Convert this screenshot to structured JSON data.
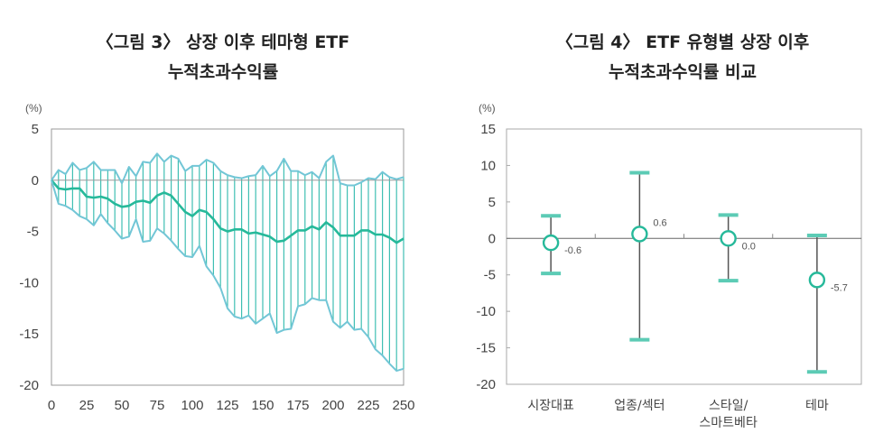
{
  "chart_data": [
    {
      "type": "line",
      "title": [
        "〈그림 3〉 상장 이후 테마형 ETF",
        "누적초과수익률"
      ],
      "unit_label": "(%)",
      "xlabel": "",
      "ylabel": "",
      "xlim": [
        0,
        250
      ],
      "ylim": [
        -20,
        5
      ],
      "xticks": [
        0,
        25,
        50,
        75,
        100,
        125,
        150,
        175,
        200,
        225,
        250
      ],
      "yticks": [
        5,
        0,
        -5,
        -10,
        -15,
        -20
      ],
      "grid": false,
      "range_fill": "vertical hatch between upper and lower series",
      "x": [
        0,
        5,
        10,
        15,
        20,
        25,
        30,
        35,
        40,
        45,
        50,
        55,
        60,
        65,
        70,
        75,
        80,
        85,
        90,
        95,
        100,
        105,
        110,
        115,
        120,
        125,
        130,
        135,
        140,
        145,
        150,
        155,
        160,
        165,
        170,
        175,
        180,
        185,
        190,
        195,
        200,
        205,
        210,
        215,
        220,
        225,
        230,
        235,
        240,
        245,
        250
      ],
      "series": [
        {
          "role": "upper",
          "color": "#72c6d6",
          "values": [
            0,
            1.0,
            0.6,
            1.7,
            1.0,
            1.2,
            1.8,
            1.0,
            1.0,
            1.0,
            -0.3,
            1.3,
            0.4,
            1.8,
            1.7,
            2.6,
            1.8,
            2.4,
            2.1,
            0.9,
            1.4,
            1.4,
            2.0,
            1.7,
            0.9,
            0.5,
            0.3,
            0.2,
            0.4,
            0.5,
            1.4,
            0.4,
            0.9,
            2.1,
            0.9,
            0.9,
            0.5,
            0.8,
            0.2,
            1.8,
            2.4,
            -0.3,
            -0.5,
            -0.5,
            -0.2,
            0.2,
            0.1,
            0.8,
            0.3,
            0.1,
            0.3
          ]
        },
        {
          "role": "mean",
          "color": "#26b99a",
          "values": [
            0,
            -0.8,
            -0.9,
            -0.8,
            -0.8,
            -1.6,
            -1.7,
            -1.6,
            -1.8,
            -2.3,
            -2.6,
            -2.5,
            -2.1,
            -2.0,
            -2.2,
            -1.5,
            -1.2,
            -1.5,
            -2.3,
            -3.1,
            -3.5,
            -2.9,
            -3.1,
            -3.8,
            -4.7,
            -5.0,
            -4.8,
            -4.8,
            -5.2,
            -5.1,
            -5.3,
            -5.5,
            -6.0,
            -5.9,
            -5.4,
            -4.9,
            -4.9,
            -4.5,
            -4.8,
            -4.1,
            -4.6,
            -5.4,
            -5.4,
            -5.4,
            -4.9,
            -4.9,
            -5.3,
            -5.3,
            -5.6,
            -6.1,
            -5.7
          ]
        },
        {
          "role": "lower",
          "color": "#72c6d6",
          "values": [
            0,
            -2.3,
            -2.5,
            -2.9,
            -3.5,
            -3.8,
            -4.4,
            -3.3,
            -4.2,
            -4.9,
            -5.7,
            -5.5,
            -3.8,
            -6.0,
            -5.9,
            -4.7,
            -5.2,
            -5.9,
            -6.7,
            -7.4,
            -7.5,
            -6.4,
            -8.4,
            -9.3,
            -10.5,
            -12.5,
            -13.3,
            -13.5,
            -13.2,
            -14.0,
            -13.5,
            -13.0,
            -14.9,
            -14.6,
            -14.5,
            -12.3,
            -12.1,
            -11.5,
            -11.7,
            -11.7,
            -13.8,
            -14.4,
            -13.8,
            -14.6,
            -14.5,
            -15.3,
            -16.5,
            -17.1,
            -17.9,
            -18.6,
            -18.4
          ]
        }
      ],
      "hatch_color": "#3fbfb3"
    },
    {
      "type": "errorbar",
      "title": [
        "〈그림 4〉 ETF 유형별 상장 이후",
        "누적초과수익률 비교"
      ],
      "unit_label": "(%)",
      "xlabel": "",
      "ylabel": "",
      "ylim": [
        -20,
        15
      ],
      "yticks": [
        15,
        10,
        5,
        0,
        -5,
        -10,
        -15,
        -20
      ],
      "grid": false,
      "categories": [
        [
          "시장대표"
        ],
        [
          "업종/섹터"
        ],
        [
          "스타일/",
          "스마트베타"
        ],
        [
          "테마"
        ]
      ],
      "values": [
        -0.6,
        0.6,
        0.0,
        -5.7
      ],
      "value_labels": [
        "-0.6",
        "0.6",
        "0.0",
        "-5.7"
      ],
      "upper": [
        3.1,
        9.0,
        3.2,
        0.4
      ],
      "lower": [
        -4.8,
        -13.9,
        -5.8,
        -18.3
      ],
      "marker_color": "#26b99a",
      "cap_color": "#5ccbb5",
      "whisker_color": "#555555"
    }
  ]
}
